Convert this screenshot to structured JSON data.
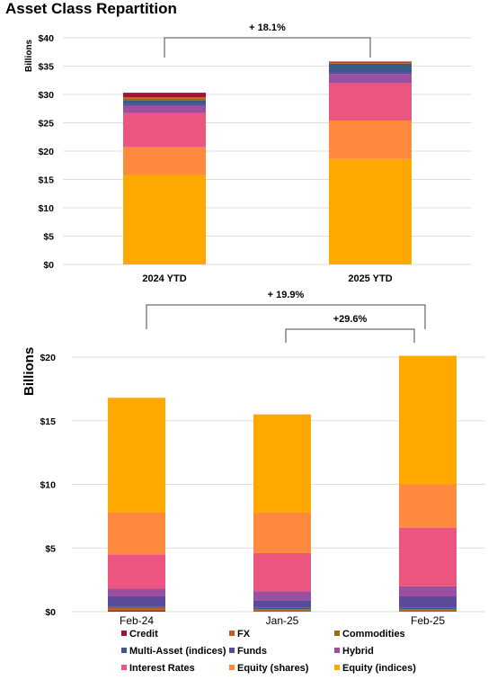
{
  "title": "Asset Class Repartition",
  "colors": {
    "Credit": "#a3123a",
    "FX": "#d2571e",
    "Commodities": "#9a6a12",
    "Multi-Asset (indices)": "#3b5a8a",
    "Funds": "#5b4a9a",
    "Hybrid": "#9a4fa0",
    "Interest Rates": "#ec5580",
    "Equity (shares)": "#ff8a3d",
    "Equity (indices)": "#ffa800"
  },
  "chart_data": [
    {
      "type": "bar",
      "stacked": true,
      "ylabel": "Billions",
      "ylim": [
        0,
        40
      ],
      "yticks": [
        "$0",
        "$5",
        "$10",
        "$15",
        "$20",
        "$25",
        "$30",
        "$35",
        "$40"
      ],
      "ytick_values": [
        0,
        5,
        10,
        15,
        20,
        25,
        30,
        35,
        40
      ],
      "categories": [
        "2024 YTD",
        "2025 YTD"
      ],
      "series": [
        {
          "name": "Equity (indices)",
          "values": [
            15.8,
            18.6
          ]
        },
        {
          "name": "Equity (shares)",
          "values": [
            4.9,
            6.8
          ]
        },
        {
          "name": "Interest Rates",
          "values": [
            6.0,
            6.6
          ]
        },
        {
          "name": "Hybrid",
          "values": [
            1.3,
            1.6
          ]
        },
        {
          "name": "Funds",
          "values": [
            0.4,
            0.3
          ]
        },
        {
          "name": "Multi-Asset (indices)",
          "values": [
            0.6,
            1.5
          ]
        },
        {
          "name": "Commodities",
          "values": [
            0.3,
            0.1
          ]
        },
        {
          "name": "FX",
          "values": [
            0.2,
            0.1
          ]
        },
        {
          "name": "Credit",
          "values": [
            0.8,
            0.2
          ]
        }
      ],
      "annotations": [
        {
          "from": "2024 YTD",
          "to": "2025 YTD",
          "label": "+ 18.1%"
        }
      ]
    },
    {
      "type": "bar",
      "stacked": true,
      "ylabel": "Billions",
      "ylim": [
        0,
        20
      ],
      "yticks": [
        "$0",
        "$5",
        "$10",
        "$15",
        "$20"
      ],
      "ytick_values": [
        0,
        5,
        10,
        15,
        20
      ],
      "categories": [
        "Feb-24",
        "Jan-25",
        "Feb-25"
      ],
      "series": [
        {
          "name": "Credit",
          "values": [
            0.1,
            0.05,
            0.05
          ]
        },
        {
          "name": "FX",
          "values": [
            0.05,
            0.05,
            0.05
          ]
        },
        {
          "name": "Commodities",
          "values": [
            0.15,
            0.1,
            0.1
          ]
        },
        {
          "name": "Multi-Asset (indices)",
          "values": [
            0.1,
            0.1,
            0.1
          ]
        },
        {
          "name": "Funds",
          "values": [
            0.8,
            0.6,
            0.9
          ]
        },
        {
          "name": "Hybrid",
          "values": [
            0.6,
            0.7,
            0.8
          ]
        },
        {
          "name": "Interest Rates",
          "values": [
            2.7,
            3.0,
            4.6
          ]
        },
        {
          "name": "Equity (shares)",
          "values": [
            3.3,
            3.2,
            3.4
          ]
        },
        {
          "name": "Equity (indices)",
          "values": [
            9.0,
            7.7,
            10.1
          ]
        }
      ],
      "annotations": [
        {
          "from": "Feb-24",
          "to": "Feb-25",
          "label": "+ 19.9%"
        },
        {
          "from": "Jan-25",
          "to": "Feb-25",
          "label": "+29.6%"
        }
      ],
      "legend": {
        "position": "bottom",
        "entries": [
          "Credit",
          "FX",
          "Commodities",
          "Multi-Asset (indices)",
          "Funds",
          "Hybrid",
          "Interest Rates",
          "Equity (shares)",
          "Equity (indices)"
        ]
      }
    }
  ]
}
